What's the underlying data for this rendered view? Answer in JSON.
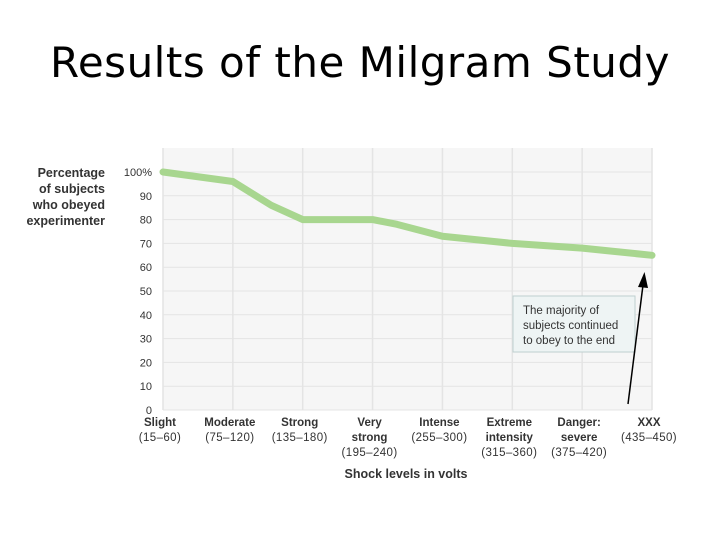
{
  "slide": {
    "title": "Results of the Milgram Study"
  },
  "chart_data": {
    "type": "line",
    "ylabel": [
      "Percentage",
      "of subjects",
      "who obeyed",
      "experimenter"
    ],
    "xlabel": "Shock levels in volts",
    "ylim": [
      0,
      100
    ],
    "yticks": [
      "0",
      "10",
      "20",
      "30",
      "40",
      "50",
      "60",
      "70",
      "80",
      "90",
      "100%"
    ],
    "categories": [
      {
        "label": [
          "Slight"
        ],
        "range": "(15–60)"
      },
      {
        "label": [
          "Moderate"
        ],
        "range": "(75–120)"
      },
      {
        "label": [
          "Strong"
        ],
        "range": "(135–180)"
      },
      {
        "label": [
          "Very",
          "strong"
        ],
        "range": "(195–240)"
      },
      {
        "label": [
          "Intense"
        ],
        "range": "(255–300)"
      },
      {
        "label": [
          "Extreme",
          "intensity"
        ],
        "range": "(315–360)"
      },
      {
        "label": [
          "Danger:",
          "severe"
        ],
        "range": "(375–420)"
      },
      {
        "label": [
          "XXX"
        ],
        "range": "(435–450)"
      }
    ],
    "series": [
      {
        "x": [
          0,
          1,
          1.55,
          2,
          3,
          3.35,
          4,
          5,
          6,
          7
        ],
        "values": [
          100,
          96,
          86,
          80,
          80,
          78,
          73,
          70,
          68,
          65
        ]
      }
    ],
    "annotation": {
      "lines": [
        "The majority of",
        "subjects continued",
        "to obey to the end"
      ]
    },
    "grid": true,
    "colors": {
      "line": "#a8d68f",
      "grid": "#e4e4e4",
      "panel": "#f6f6f6",
      "text": "#333333",
      "annotation_bg": "#eef4f4"
    }
  }
}
